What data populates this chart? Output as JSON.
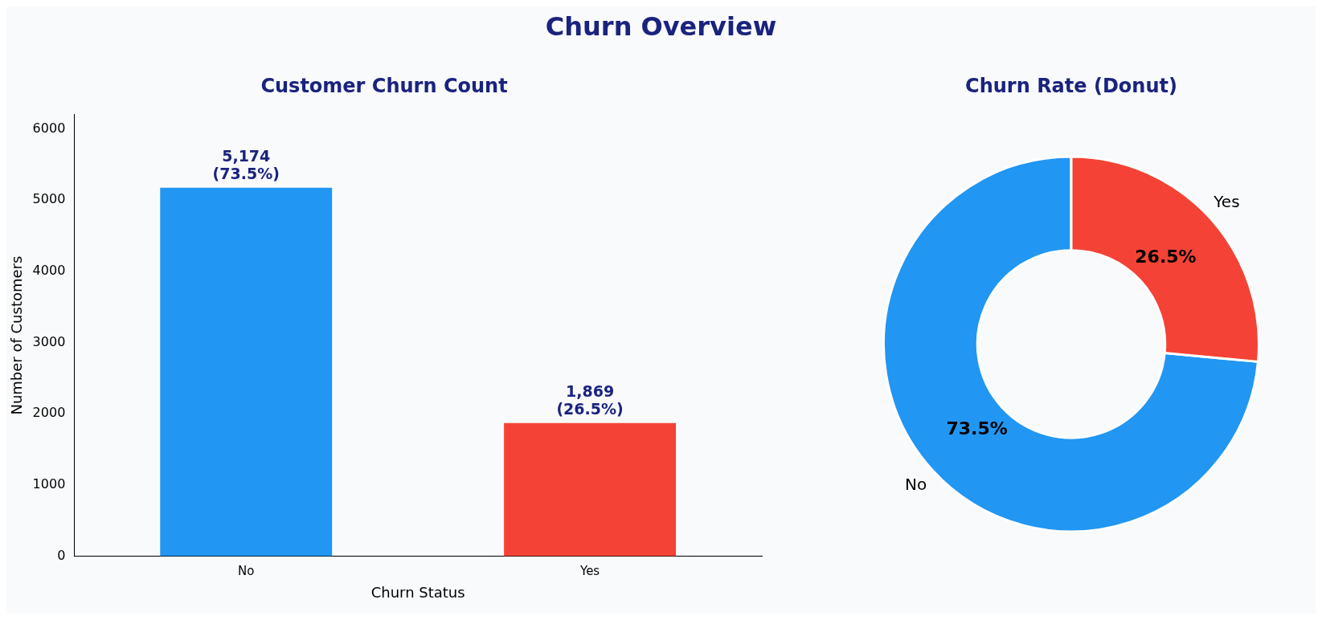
{
  "chart_data": [
    {
      "type": "bar",
      "title": "Churn Overview",
      "subtitle": "Customer Churn Count",
      "xlabel": "Churn Status",
      "ylabel": "Number of Customers",
      "categories": [
        "No",
        "Yes"
      ],
      "values": [
        5174,
        1869
      ],
      "colors": [
        "#2196f3",
        "#f44336"
      ],
      "value_labels": [
        "5,174\n(73.5%)",
        "1,869\n(26.5%)"
      ],
      "ylim": [
        0,
        6200
      ],
      "yticks": [
        0,
        1000,
        2000,
        3000,
        4000,
        5000,
        6000
      ],
      "grid": false,
      "legend": false
    },
    {
      "type": "donut",
      "title": "Churn Rate (Donut)",
      "categories": [
        "No",
        "Yes"
      ],
      "values": [
        73.5,
        26.5
      ],
      "colors": [
        "#2196f3",
        "#f44336"
      ],
      "value_labels": [
        "73.5%",
        "26.5%"
      ],
      "legend": false
    }
  ]
}
